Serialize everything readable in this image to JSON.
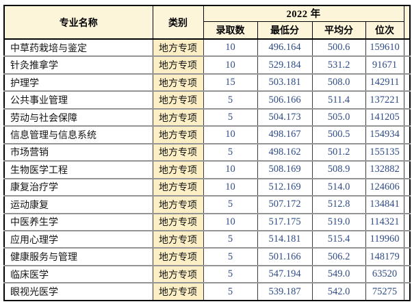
{
  "table": {
    "title_note": "",
    "year_header": "2022 年",
    "columns": {
      "major": "专业名称",
      "category": "类别",
      "admit_count": "录取数",
      "min_score": "最低分",
      "avg_score": "平均分",
      "rank": "位次"
    },
    "rows": [
      {
        "major": "中草药栽培与鉴定",
        "category": "地方专项",
        "admit_count": "10",
        "min_score": "496.164",
        "avg_score": "500.6",
        "rank": "159610"
      },
      {
        "major": "针灸推拿学",
        "category": "地方专项",
        "admit_count": "10",
        "min_score": "529.184",
        "avg_score": "531.2",
        "rank": "91671"
      },
      {
        "major": "护理学",
        "category": "地方专项",
        "admit_count": "15",
        "min_score": "503.181",
        "avg_score": "508.0",
        "rank": "142911"
      },
      {
        "major": "公共事业管理",
        "category": "地方专项",
        "admit_count": "5",
        "min_score": "506.166",
        "avg_score": "511.4",
        "rank": "137221"
      },
      {
        "major": "劳动与社会保障",
        "category": "地方专项",
        "admit_count": "5",
        "min_score": "504.173",
        "avg_score": "505.0",
        "rank": "141205"
      },
      {
        "major": "信息管理与信息系统",
        "category": "地方专项",
        "admit_count": "10",
        "min_score": "498.167",
        "avg_score": "500.5",
        "rank": "154934"
      },
      {
        "major": "市场营销",
        "category": "地方专项",
        "admit_count": "5",
        "min_score": "498.162",
        "avg_score": "501.2",
        "rank": "155135"
      },
      {
        "major": "生物医学工程",
        "category": "地方专项",
        "admit_count": "10",
        "min_score": "508.169",
        "avg_score": "508.9",
        "rank": "132882"
      },
      {
        "major": "康复治疗学",
        "category": "地方专项",
        "admit_count": "10",
        "min_score": "512.169",
        "avg_score": "514.0",
        "rank": "124606"
      },
      {
        "major": "运动康复",
        "category": "地方专项",
        "admit_count": "5",
        "min_score": "507.172",
        "avg_score": "512.8",
        "rank": "134841"
      },
      {
        "major": "中医养生学",
        "category": "地方专项",
        "admit_count": "10",
        "min_score": "517.175",
        "avg_score": "519.0",
        "rank": "114321"
      },
      {
        "major": "应用心理学",
        "category": "地方专项",
        "admit_count": "5",
        "min_score": "514.181",
        "avg_score": "515.4",
        "rank": "119960"
      },
      {
        "major": "健康服务与管理",
        "category": "地方专项",
        "admit_count": "5",
        "min_score": "501.166",
        "avg_score": "506.2",
        "rank": "148179"
      },
      {
        "major": "临床医学",
        "category": "地方专项",
        "admit_count": "5",
        "min_score": "547.194",
        "avg_score": "549.0",
        "rank": "63520"
      },
      {
        "major": "眼视光医学",
        "category": "地方专项",
        "admit_count": "5",
        "min_score": "539.187",
        "avg_score": "542.0",
        "rank": "75275"
      }
    ],
    "colors": {
      "header_bg": "#fdf5da",
      "category_bg": "#fcefc5",
      "number_text": "#2e4b87",
      "outer_border": "#000000",
      "row_separator": "#949494"
    }
  }
}
